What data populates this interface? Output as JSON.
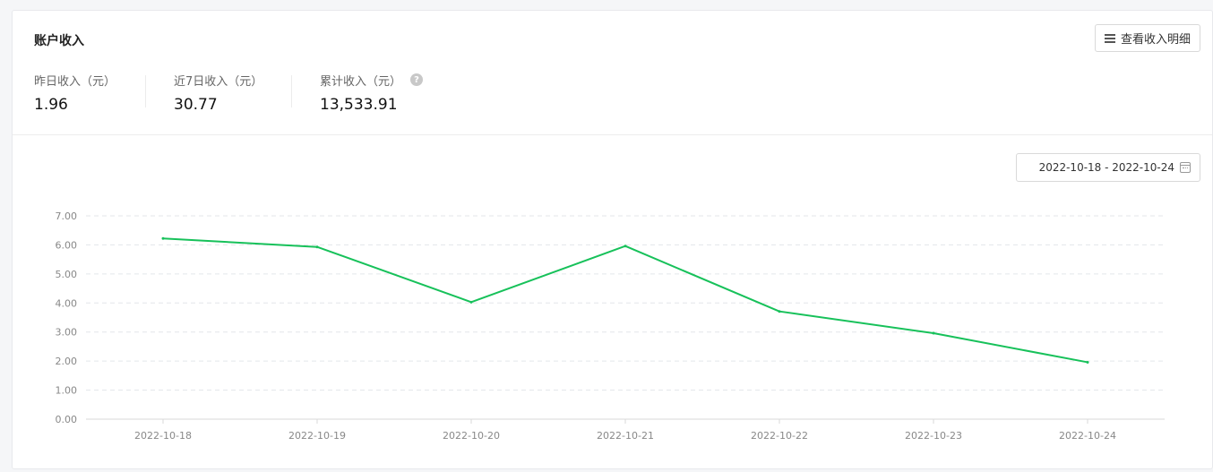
{
  "header": {
    "title": "账户收入",
    "detail_button": "查看收入明细",
    "detail_icon": "menu-icon"
  },
  "stats": [
    {
      "label": "昨日收入（元）",
      "value": "1.96"
    },
    {
      "label": "近7日收入（元）",
      "value": "30.77"
    },
    {
      "label": "累计收入（元）",
      "value": "13,533.91",
      "help_icon": "question-circle-icon"
    }
  ],
  "date_range": {
    "value": "2022-10-18 - 2022-10-24",
    "icon": "calendar-icon"
  },
  "colors": {
    "line": "#17c15a",
    "grid": "#e3e6ea",
    "axis": "#d8d8d8"
  },
  "chart_data": {
    "type": "line",
    "categories": [
      "2022-10-18",
      "2022-10-19",
      "2022-10-20",
      "2022-10-21",
      "2022-10-22",
      "2022-10-23",
      "2022-10-24"
    ],
    "series": [
      {
        "values": [
          6.22,
          5.93,
          4.03,
          5.96,
          3.71,
          2.96,
          1.96
        ]
      }
    ],
    "ylim": [
      0,
      7
    ],
    "yticks": [
      "0.00",
      "1.00",
      "2.00",
      "3.00",
      "4.00",
      "5.00",
      "6.00",
      "7.00"
    ],
    "grid": true,
    "title": "",
    "xlabel": "",
    "ylabel": ""
  }
}
